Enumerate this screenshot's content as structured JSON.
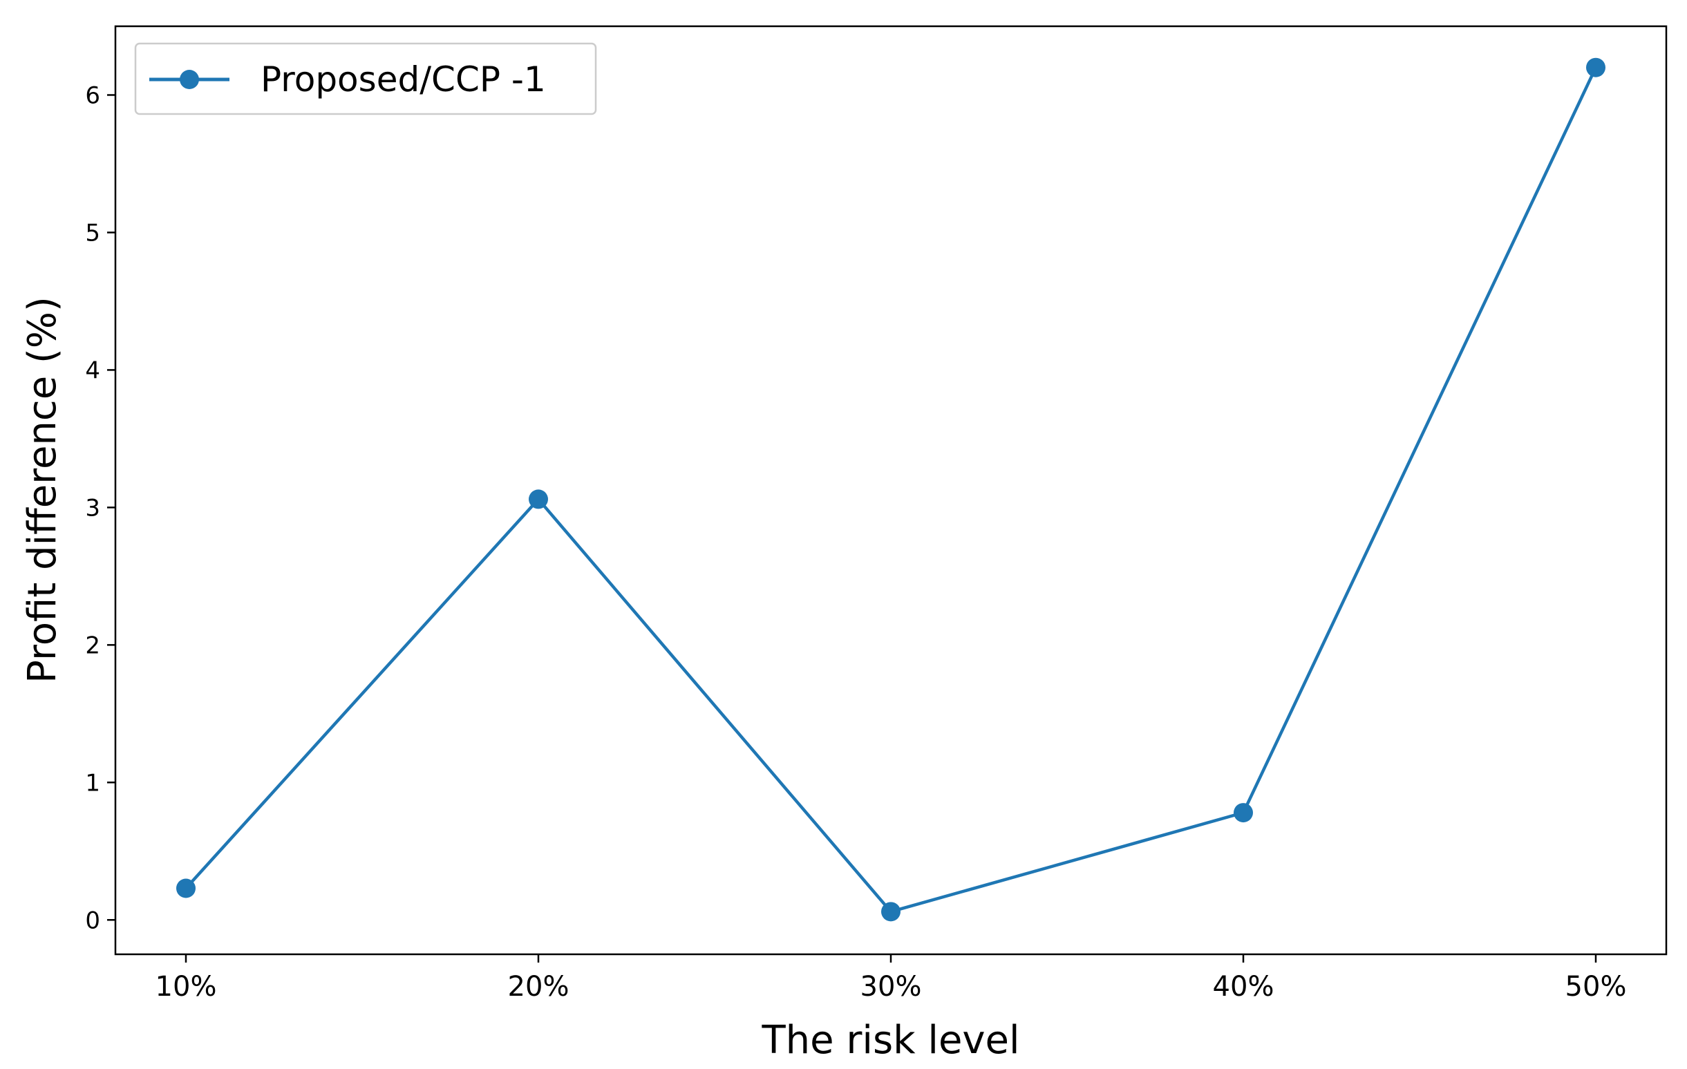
{
  "chart_data": {
    "type": "line",
    "categories": [
      "10%",
      "20%",
      "30%",
      "40%",
      "50%"
    ],
    "series": [
      {
        "name": "Proposed/CCP -1",
        "values": [
          0.23,
          3.06,
          0.06,
          0.78,
          6.2
        ],
        "color": "#1f77b4",
        "marker": "circle"
      }
    ],
    "xlabel": "The risk level",
    "ylabel": "Profit difference (%)",
    "ylim": [
      -0.25,
      6.5
    ],
    "yticks": [
      0,
      1,
      2,
      3,
      4,
      5,
      6
    ],
    "grid": false,
    "legend": {
      "placement": "top-left"
    }
  }
}
